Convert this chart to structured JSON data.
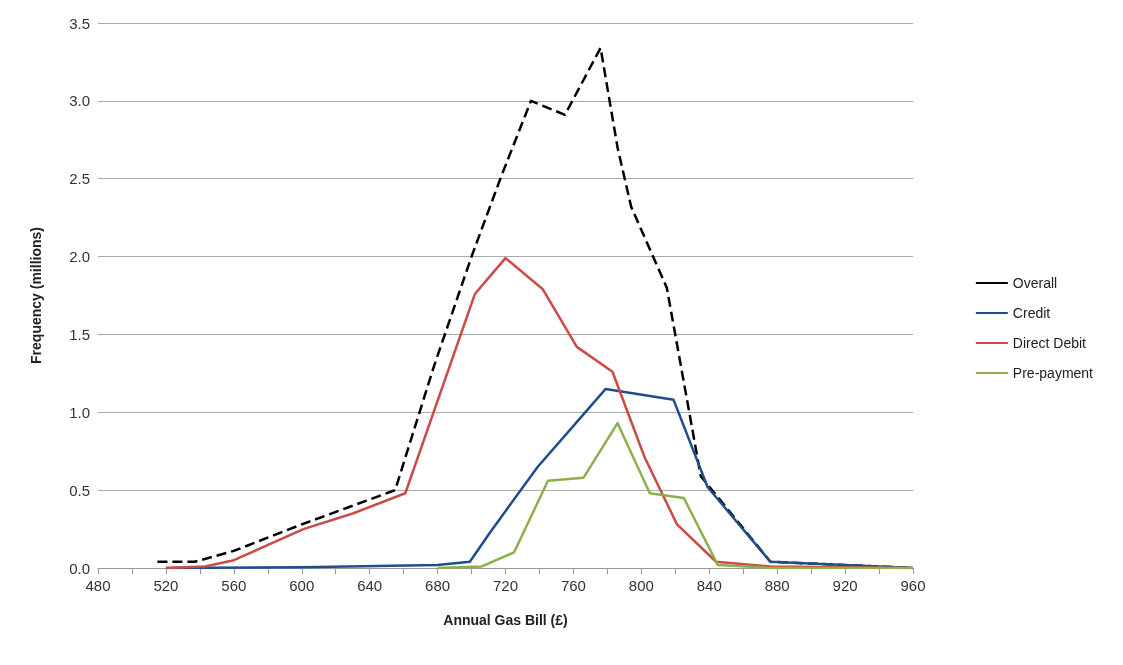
{
  "chart_data": {
    "type": "line",
    "xlabel": "Annual Gas Bill (£)",
    "ylabel": "Frequency (millions)",
    "xlim": [
      480,
      960
    ],
    "xticks": [
      480,
      {
        "value": 500,
        "label": null
      },
      520,
      {
        "value": 540,
        "label": null
      },
      560,
      {
        "value": 580,
        "label": null
      },
      600,
      {
        "value": 620,
        "label": null
      },
      640,
      {
        "value": 660,
        "label": null
      },
      680,
      {
        "value": 700,
        "label": null
      },
      720,
      {
        "value": 740,
        "label": null
      },
      760,
      {
        "value": 780,
        "label": null
      },
      800,
      {
        "value": 820,
        "label": null
      },
      840,
      {
        "value": 860,
        "label": null
      },
      880,
      {
        "value": 900,
        "label": null
      },
      920,
      {
        "value": 940,
        "label": null
      },
      960
    ],
    "ylim": [
      0,
      3.5
    ],
    "yticks": [
      {
        "value": 0,
        "label": "0.0"
      },
      0.5,
      {
        "value": 1,
        "label": "1.0"
      },
      1.5,
      {
        "value": 2,
        "label": "2.0"
      },
      2.5,
      {
        "value": 3,
        "label": "3.0"
      },
      3.5
    ],
    "grid": "y",
    "legend": "right",
    "marker": "none",
    "series": [
      {
        "name": "Overall",
        "color": "#000000",
        "line_style": "dashed",
        "x": [
          515,
          537,
          560,
          600,
          630,
          655,
          678,
          700,
          718,
          735,
          755,
          776,
          786,
          794,
          815,
          835,
          876,
          960
        ],
        "values": [
          0.04,
          0.04,
          0.11,
          0.28,
          0.4,
          0.5,
          1.3,
          2.0,
          2.53,
          3.0,
          2.91,
          3.34,
          2.7,
          2.32,
          1.8,
          0.59,
          0.04,
          0
        ]
      },
      {
        "name": "Credit",
        "color": "#1f4e8c",
        "line_style": "solid",
        "x": [
          520,
          600,
          680,
          699,
          711,
          739,
          759,
          779,
          819,
          839,
          876,
          960
        ],
        "values": [
          0,
          0.005,
          0.02,
          0.04,
          0.23,
          0.65,
          0.9,
          1.15,
          1.08,
          0.52,
          0.04,
          0
        ]
      },
      {
        "name": "Direct Debit",
        "color": "#cc4a48",
        "line_style": "solid",
        "x": [
          520,
          543,
          560,
          601,
          630,
          661,
          702,
          709,
          720,
          742,
          762,
          783,
          802,
          821,
          844,
          876,
          960
        ],
        "values": [
          0,
          0.01,
          0.05,
          0.25,
          0.35,
          0.48,
          1.76,
          1.85,
          1.99,
          1.79,
          1.42,
          1.26,
          0.71,
          0.28,
          0.04,
          0.01,
          0
        ]
      },
      {
        "name": "Pre-payment",
        "color": "#8db04a",
        "line_style": "solid",
        "x": [
          680,
          706,
          725,
          745,
          766,
          786,
          805,
          825,
          845,
          876,
          960
        ],
        "values": [
          0,
          0.01,
          0.1,
          0.56,
          0.58,
          0.93,
          0.48,
          0.45,
          0.02,
          0,
          0
        ]
      }
    ]
  }
}
